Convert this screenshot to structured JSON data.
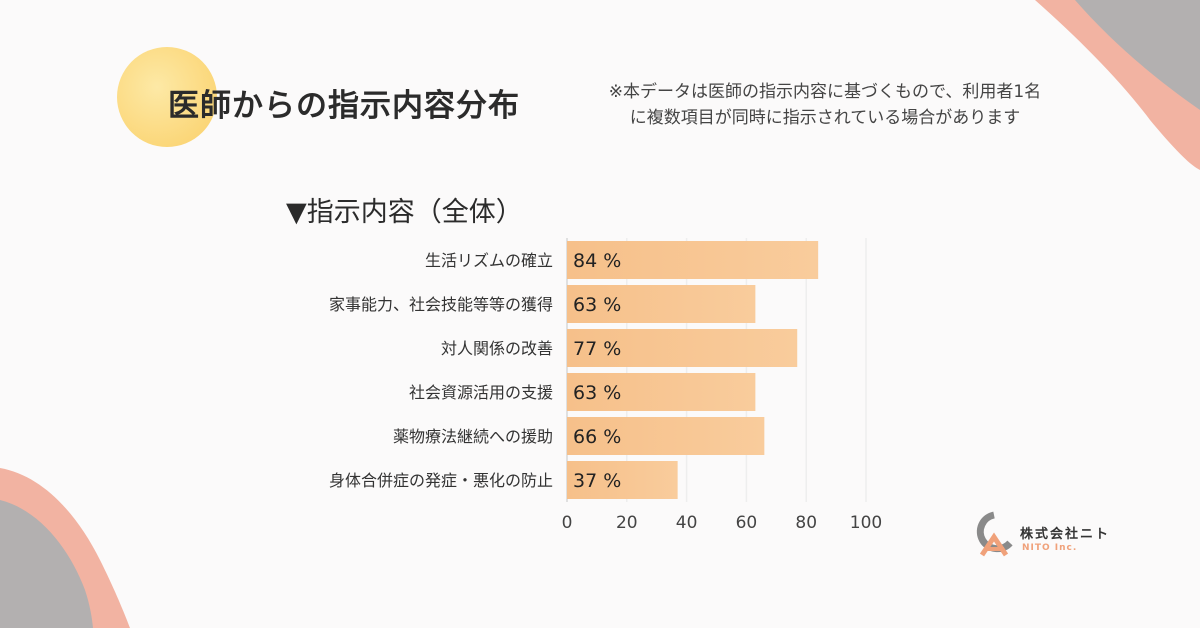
{
  "header": {
    "title": "医師からの指示内容分布",
    "note_lines": [
      "※本データは医師の指示内容に基づくもので、利用者1名",
      "に複数項目が同時に指示されている場合があります"
    ]
  },
  "section": {
    "heading": "▼指示内容（全体）"
  },
  "chart_data": {
    "type": "bar",
    "orientation": "horizontal",
    "categories": [
      "生活リズムの確立",
      "家事能力、社会技能等等の獲得",
      "対人関係の改善",
      "社会資源活用の支援",
      "薬物療法継続への援助",
      "身体合併症の発症・悪化の防止"
    ],
    "values": [
      84,
      63,
      77,
      63,
      66,
      37
    ],
    "value_suffix": " %",
    "xlim": [
      0,
      100
    ],
    "xticks": [
      0,
      20,
      40,
      60,
      80,
      100
    ],
    "bar_color": "#f7c490",
    "title": "",
    "xlabel": "",
    "ylabel": ""
  },
  "logo": {
    "name": "株式会社ニト",
    "sub": "NITO Inc."
  }
}
